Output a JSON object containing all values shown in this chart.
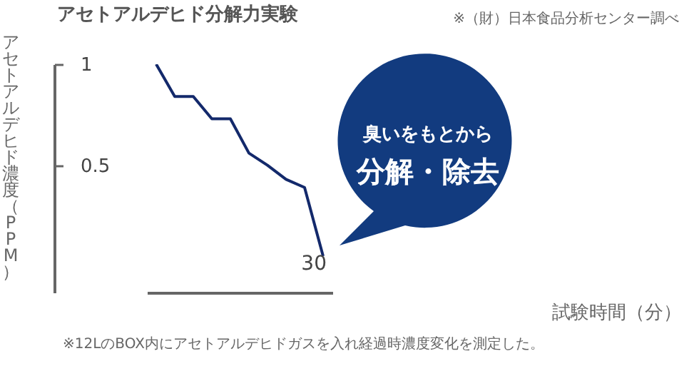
{
  "chart_data": {
    "type": "line",
    "title": "アセトアルデヒド分解力実験",
    "ylabel": "アセトアルデヒド濃度（PPM）",
    "annotations": [
      "※（財）日本食品分析センター調べ",
      "※12LのBOX内にアセトアルデヒドガスを入れ経過時濃度変化を測定した。",
      "臭いをもとから",
      "分解・除去",
      "30",
      "試験時間（分）"
    ],
    "categories": [
      null,
      null,
      null,
      null,
      null,
      null,
      null,
      null,
      null,
      null
    ],
    "series": [
      {
        "color": "#13296b",
        "values": [
          1.0,
          0.84,
          0.84,
          0.73,
          0.73,
          0.56,
          0.5,
          0.43,
          0.39,
          0.05
        ]
      }
    ],
    "ylim": [
      -0.13,
      1
    ],
    "yticks": [
      0.5,
      1
    ],
    "grid": false,
    "marker": "none",
    "line_style": "solid"
  }
}
